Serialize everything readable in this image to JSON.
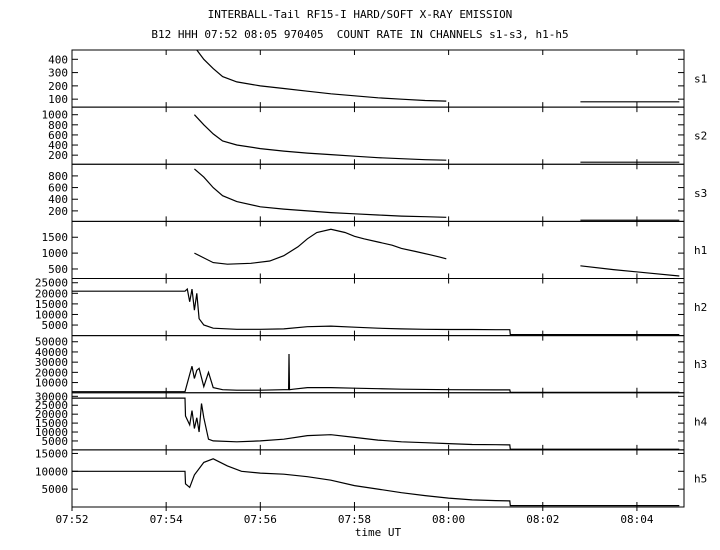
{
  "header": {
    "title": "INTERBALL-Tail RF15-I HARD/SOFT X-RAY EMISSION",
    "subtitle": "B12 HHH 07:52 08:05 970405  COUNT RATE IN CHANNELS s1-s3, h1-h5"
  },
  "chart_data": {
    "type": "line",
    "title": "INTERBALL-Tail RF15-I HARD/SOFT X-RAY EMISSION",
    "subtitle": "B12 HHH 07:52 08:05 970405  COUNT RATE IN CHANNELS s1-s3, h1-h5",
    "xlabel": "time UT",
    "x_unit": "minutes after 07:52",
    "xlim": [
      0,
      13
    ],
    "x_ticks": [
      0,
      2,
      4,
      6,
      8,
      10,
      12
    ],
    "x_tick_labels": [
      "07:52",
      "07:54",
      "07:56",
      "07:58",
      "08:00",
      "08:02",
      "08:04"
    ],
    "panels": [
      {
        "name": "s1",
        "ylim": [
          40,
          470
        ],
        "yticks": [
          100,
          200,
          300,
          400
        ],
        "segments": [
          {
            "x": [
              2.65,
              2.8,
              3.0,
              3.2,
              3.5,
              4.0,
              4.5,
              5.0,
              5.5,
              6.0,
              6.5,
              7.0,
              7.5,
              7.95
            ],
            "y": [
              470,
              400,
              330,
              270,
              230,
              200,
              180,
              160,
              140,
              125,
              110,
              100,
              90,
              85
            ]
          },
          {
            "x": [
              10.8,
              11.5,
              12.2,
              12.9
            ],
            "y": [
              80,
              80,
              80,
              80
            ]
          }
        ]
      },
      {
        "name": "s2",
        "ylim": [
          20,
          1150
        ],
        "yticks": [
          200,
          400,
          600,
          800,
          1000
        ],
        "segments": [
          {
            "x": [
              2.6,
              2.8,
              3.0,
              3.2,
              3.5,
              4.0,
              4.5,
              5.0,
              5.5,
              6.0,
              6.5,
              7.0,
              7.5,
              7.95
            ],
            "y": [
              1000,
              800,
              620,
              480,
              400,
              330,
              280,
              240,
              210,
              180,
              150,
              130,
              110,
              100
            ]
          },
          {
            "x": [
              10.8,
              11.5,
              12.2,
              12.9
            ],
            "y": [
              60,
              60,
              60,
              60
            ]
          }
        ]
      },
      {
        "name": "s3",
        "ylim": [
          20,
          1000
        ],
        "yticks": [
          200,
          400,
          600,
          800
        ],
        "segments": [
          {
            "x": [
              2.6,
              2.8,
              3.0,
              3.2,
              3.5,
              4.0,
              4.5,
              5.0,
              5.5,
              6.0,
              6.5,
              7.0,
              7.5,
              7.95
            ],
            "y": [
              920,
              780,
              600,
              460,
              360,
              270,
              230,
              200,
              170,
              150,
              130,
              110,
              100,
              90
            ]
          },
          {
            "x": [
              10.8,
              11.5,
              12.2,
              12.9
            ],
            "y": [
              40,
              40,
              40,
              40
            ]
          }
        ]
      },
      {
        "name": "h1",
        "ylim": [
          200,
          2000
        ],
        "yticks": [
          500,
          1000,
          1500
        ],
        "segments": [
          {
            "x": [
              2.6,
              2.8,
              3.0,
              3.3,
              3.8,
              4.2,
              4.5,
              4.8,
              5.0,
              5.2,
              5.5,
              5.8,
              6.0,
              6.2,
              6.5,
              6.8,
              7.0,
              7.3,
              7.6,
              7.8,
              7.95
            ],
            "y": [
              1000,
              850,
              700,
              650,
              680,
              750,
              920,
              1200,
              1450,
              1650,
              1750,
              1650,
              1530,
              1450,
              1350,
              1250,
              1150,
              1050,
              950,
              880,
              820
            ]
          },
          {
            "x": [
              10.8,
              11.5,
              12.2,
              12.9
            ],
            "y": [
              600,
              480,
              380,
              280
            ]
          }
        ]
      },
      {
        "name": "h2",
        "ylim": [
          0,
          27000
        ],
        "yticks": [
          5000,
          10000,
          15000,
          20000,
          25000
        ],
        "segments": [
          {
            "x": [
              0,
              2.4,
              2.45,
              2.5,
              2.55,
              2.6,
              2.65,
              2.7,
              2.8,
              3.0,
              3.5,
              4.0,
              4.5,
              5.0,
              5.5,
              6.0,
              6.5,
              7.0,
              7.5,
              8.0,
              8.5,
              9.0,
              9.3,
              9.31,
              12.9
            ],
            "y": [
              21000,
              21000,
              22000,
              16000,
              22000,
              12000,
              20000,
              8000,
              5000,
              3500,
              3000,
              3000,
              3200,
              4200,
              4500,
              4000,
              3500,
              3200,
              3000,
              2900,
              2900,
              2800,
              2800,
              500,
              500
            ]
          }
        ]
      },
      {
        "name": "h3",
        "ylim": [
          0,
          56000
        ],
        "yticks": [
          10000,
          20000,
          30000,
          40000,
          50000
        ],
        "segments": [
          {
            "x": [
              0,
              2.4,
              2.5,
              2.55,
              2.6,
              2.65,
              2.7,
              2.8,
              2.9,
              3.0,
              3.2,
              3.5,
              4.0,
              4.5,
              4.6,
              4.61,
              4.62,
              4.7,
              5.0,
              5.5,
              6.0,
              6.5,
              7.0,
              8.0,
              9.0,
              9.3,
              9.31,
              12.9
            ],
            "y": [
              1000,
              1000,
              18000,
              26000,
              14000,
              22000,
              24000,
              6000,
              20000,
              5000,
              3000,
              2500,
              2500,
              3000,
              3000,
              38000,
              3000,
              3500,
              5000,
              5000,
              4500,
              4000,
              3500,
              3000,
              2800,
              2800,
              400,
              400
            ]
          }
        ]
      },
      {
        "name": "h4",
        "ylim": [
          0,
          32000
        ],
        "yticks": [
          5000,
          10000,
          15000,
          20000,
          25000,
          30000
        ],
        "segments": [
          {
            "x": [
              0,
              2.4,
              2.41,
              2.5,
              2.55,
              2.6,
              2.65,
              2.7,
              2.75,
              2.8,
              2.9,
              3.0,
              3.5,
              4.0,
              4.5,
              5.0,
              5.5,
              6.0,
              6.5,
              7.0,
              7.5,
              8.0,
              8.5,
              9.0,
              9.3,
              9.31,
              12.9
            ],
            "y": [
              29000,
              29000,
              19000,
              14000,
              22000,
              12000,
              18000,
              10000,
              26000,
              18000,
              6000,
              5000,
              4500,
              5000,
              6000,
              8000,
              8500,
              7000,
              5500,
              4500,
              4000,
              3500,
              3000,
              2900,
              2800,
              400,
              400
            ]
          }
        ]
      },
      {
        "name": "h5",
        "ylim": [
          0,
          16000
        ],
        "yticks": [
          5000,
          10000,
          15000
        ],
        "segments": [
          {
            "x": [
              0,
              2.4,
              2.41,
              2.5,
              2.6,
              2.8,
              3.0,
              3.3,
              3.6,
              4.0,
              4.5,
              5.0,
              5.5,
              6.0,
              6.5,
              7.0,
              7.5,
              8.0,
              8.5,
              9.0,
              9.3,
              9.31,
              12.9
            ],
            "y": [
              10000,
              10000,
              6500,
              5500,
              9000,
              12500,
              13500,
              11500,
              10000,
              9500,
              9200,
              8500,
              7500,
              6000,
              5000,
              4000,
              3200,
              2500,
              2000,
              1800,
              1700,
              400,
              400
            ]
          }
        ]
      }
    ]
  }
}
